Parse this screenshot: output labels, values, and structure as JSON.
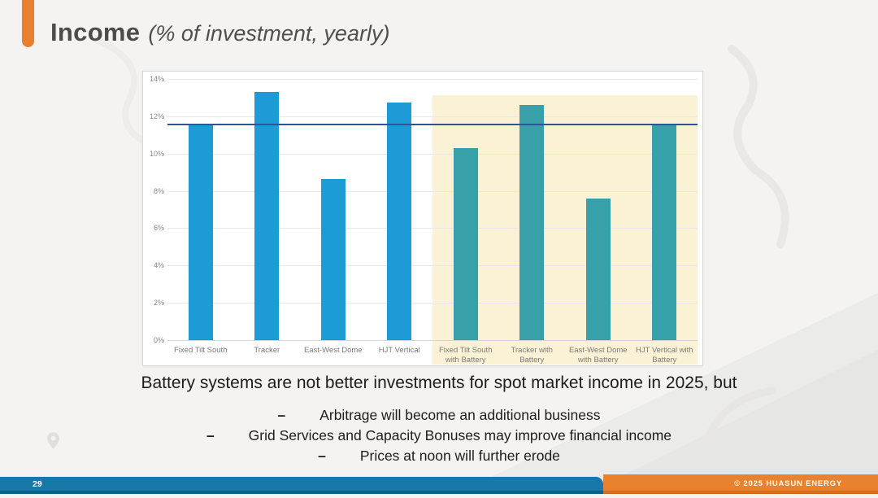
{
  "slide": {
    "title": "Income",
    "subtitle": "(% of investment, yearly)",
    "statement": "Battery systems are not better investments for spot market income in 2025, but",
    "bullet_marker": "–",
    "bullets": [
      "Arbitrage will become an additional business",
      "Grid Services and Capacity Bonuses may improve financial income",
      "Prices at noon will further erode"
    ]
  },
  "footer": {
    "page_number": "29",
    "copyright": "© 2025 HUASUN ENERGY"
  },
  "colors": {
    "accent_orange": "#e8802f",
    "footer_blue": "#1878a8",
    "footer_blue_dark": "#0d5f85",
    "footer_orange": "#e8822e",
    "footer_orange_dark": "#cf6d22",
    "bar_standard": "#1d9bd7",
    "bar_battery": "#38a0a8",
    "highlight_bg": "#fbf2d5",
    "reference_line": "#2f5496"
  },
  "chart_data": {
    "type": "bar",
    "title": "",
    "xlabel": "",
    "ylabel": "",
    "categories": [
      "Fixed Tilt South",
      "Tracker",
      "East-West Dome",
      "HJT Vertical",
      "Fixed Tilt South\nwith Battery",
      "Tracker with\nBattery",
      "East-West Dome\nwith Battery",
      "HJT Vertical with\nBattery"
    ],
    "values": [
      11.5,
      13.3,
      8.65,
      12.75,
      10.3,
      12.6,
      7.6,
      11.55
    ],
    "reference_line_value": 11.55,
    "highlight_start_index": 4,
    "highlight_note": "battery scenarios highlighted with cream background",
    "ylim": [
      0,
      14
    ],
    "ytick_step": 2,
    "ytick_labels": [
      "0%",
      "2%",
      "4%",
      "6%",
      "8%",
      "10%",
      "12%",
      "14%"
    ],
    "grid": true,
    "legend": false
  }
}
